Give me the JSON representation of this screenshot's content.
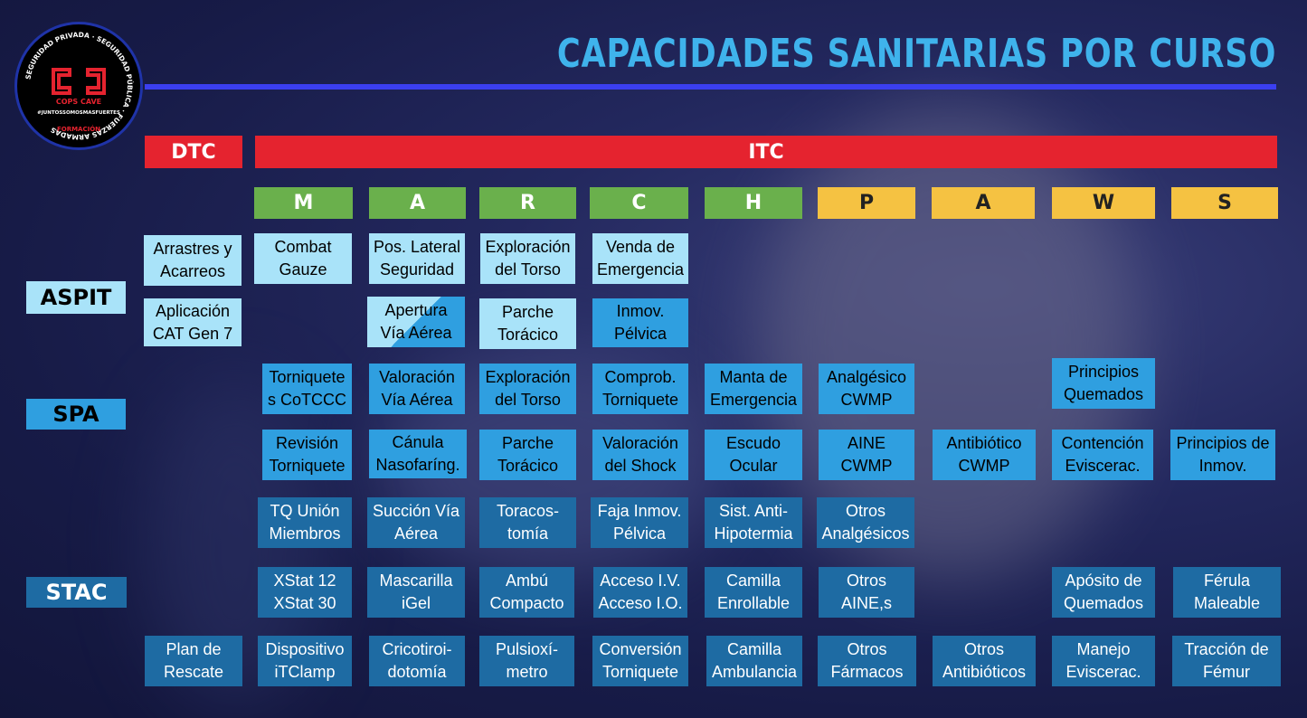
{
  "title": "CAPACIDADES SANITARIAS POR CURSO",
  "logo": {
    "ring_text": "SEGURIDAD PRIVADA · SEGURIDAD PÚBLICA · FUERZAS ARMADAS",
    "brand": "COPS CAVE",
    "hashtag": "#JUNTOSSOMOSMASFUERTES",
    "bottom": "FORMACIÓN"
  },
  "headers": {
    "dtc": "DTC",
    "itc": "ITC"
  },
  "march": [
    "M",
    "A",
    "R",
    "C",
    "H",
    "P",
    "A",
    "W",
    "S"
  ],
  "levels": [
    "ASPIT",
    "SPA",
    "STAC"
  ],
  "cells": [
    "Arrastres y\nAcarreos",
    "Combat\nGauze",
    "Pos. Lateral\nSeguridad",
    "Exploración\ndel Torso",
    "Venda de\nEmergencia",
    "Aplicación\nCAT Gen 7",
    "Apertura\nVía Aérea",
    "Parche\nTorácico",
    "Inmov.\nPélvica",
    "Torniquete\ns CoTCCC",
    "Valoración\nVía Aérea",
    "Exploración\ndel Torso",
    "Comprob.\nTorniquete",
    "Manta de\nEmergencia",
    "Analgésico\nCWMP",
    "Principios\nQuemados",
    "Revisión\nTorniquete",
    "Cánula\nNasofaríng.",
    "Parche\nTorácico",
    "Valoración\ndel Shock",
    "Escudo\nOcular",
    "AINE\nCWMP",
    "Antibiótico\nCWMP",
    "Contención\nEviscerac.",
    "Principios de\nInmov.",
    "TQ Unión\nMiembros",
    "Succión Vía\nAérea",
    "Toracos-\ntomía",
    "Faja Inmov.\nPélvica",
    "Sist. Anti-\nHipotermia",
    "Otros\nAnalgésicos",
    "XStat 12\nXStat 30",
    "Mascarilla\niGel",
    "Ambú\nCompacto",
    "Acceso I.V.\nAcceso I.O.",
    "Camilla\nEnrollable",
    "Otros\nAINE,s",
    "Apósito de\nQuemados",
    "Férula\nMaleable",
    "Plan de\nRescate",
    "Dispositivo\niTClamp",
    "Cricotiroi-\ndotomía",
    "Pulsioxí-\nmetro",
    "Conversión\nTorniquete",
    "Camilla\nAmbulancia",
    "Otros\nFármacos",
    "Otros\nAntibióticos",
    "Manejo\nEviscerac.",
    "Tracción de\nFémur"
  ]
}
